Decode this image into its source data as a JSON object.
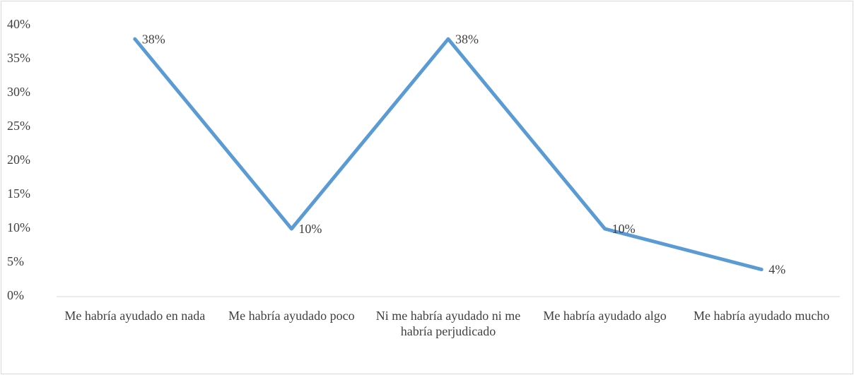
{
  "chart_data": {
    "type": "line",
    "categories": [
      "Me habría ayudado en nada",
      "Me habría ayudado poco",
      "Ni me habría ayudado ni me habría perjudicado",
      "Me habría ayudado algo",
      "Me habría ayudado mucho"
    ],
    "series": [
      {
        "name": null,
        "color": "#5b9bd5",
        "values": [
          38,
          10,
          38,
          10,
          4
        ],
        "value_labels": [
          "38%",
          "10%",
          "38%",
          "10%",
          "4%"
        ]
      }
    ],
    "ylim": [
      0,
      40
    ],
    "yticks": [
      {
        "value": 0,
        "label": "0%"
      },
      {
        "value": 5,
        "label": "5%"
      },
      {
        "value": 10,
        "label": "10%"
      },
      {
        "value": 15,
        "label": "15%"
      },
      {
        "value": 20,
        "label": "20%"
      },
      {
        "value": 25,
        "label": "25%"
      },
      {
        "value": 30,
        "label": "30%"
      },
      {
        "value": 35,
        "label": "35%"
      },
      {
        "value": 40,
        "label": "40%"
      }
    ],
    "grid": false
  }
}
